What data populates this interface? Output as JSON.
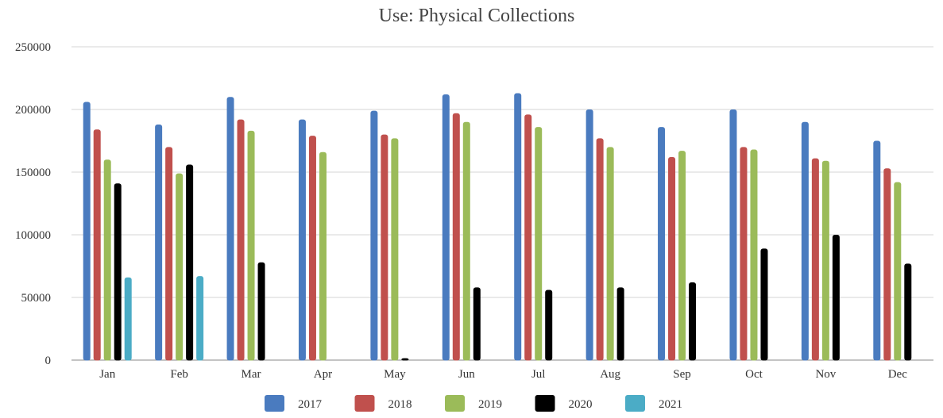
{
  "chart_data": {
    "type": "bar",
    "title": "Use:  Physical Collections",
    "xlabel": "",
    "ylabel": "",
    "ylim": [
      0,
      250000
    ],
    "yticks": [
      "0",
      "50000",
      "100000",
      "150000",
      "200000",
      "250000"
    ],
    "categories": [
      "Jan",
      "Feb",
      "Mar",
      "Apr",
      "May",
      "Jun",
      "Jul",
      "Aug",
      "Sep",
      "Oct",
      "Nov",
      "Dec"
    ],
    "grid": true,
    "legend_position": "bottom",
    "series": [
      {
        "name": "2017",
        "color": "#4a7bbf",
        "values": [
          206000,
          188000,
          210000,
          192000,
          199000,
          212000,
          213000,
          200000,
          186000,
          200000,
          190000,
          175000
        ]
      },
      {
        "name": "2018",
        "color": "#c0504d",
        "values": [
          184000,
          170000,
          192000,
          179000,
          180000,
          197000,
          196000,
          177000,
          162000,
          170000,
          161000,
          153000
        ]
      },
      {
        "name": "2019",
        "color": "#9bbb59",
        "values": [
          160000,
          149000,
          183000,
          166000,
          177000,
          190000,
          186000,
          170000,
          167000,
          168000,
          159000,
          142000
        ]
      },
      {
        "name": "2020",
        "color": "#000000",
        "values": [
          141000,
          156000,
          78000,
          null,
          1500,
          58000,
          56000,
          58000,
          62000,
          89000,
          100000,
          77000
        ]
      },
      {
        "name": "2021",
        "color": "#4bacc6",
        "values": [
          66000,
          67000,
          null,
          null,
          null,
          null,
          null,
          null,
          null,
          null,
          null,
          null
        ]
      }
    ]
  }
}
